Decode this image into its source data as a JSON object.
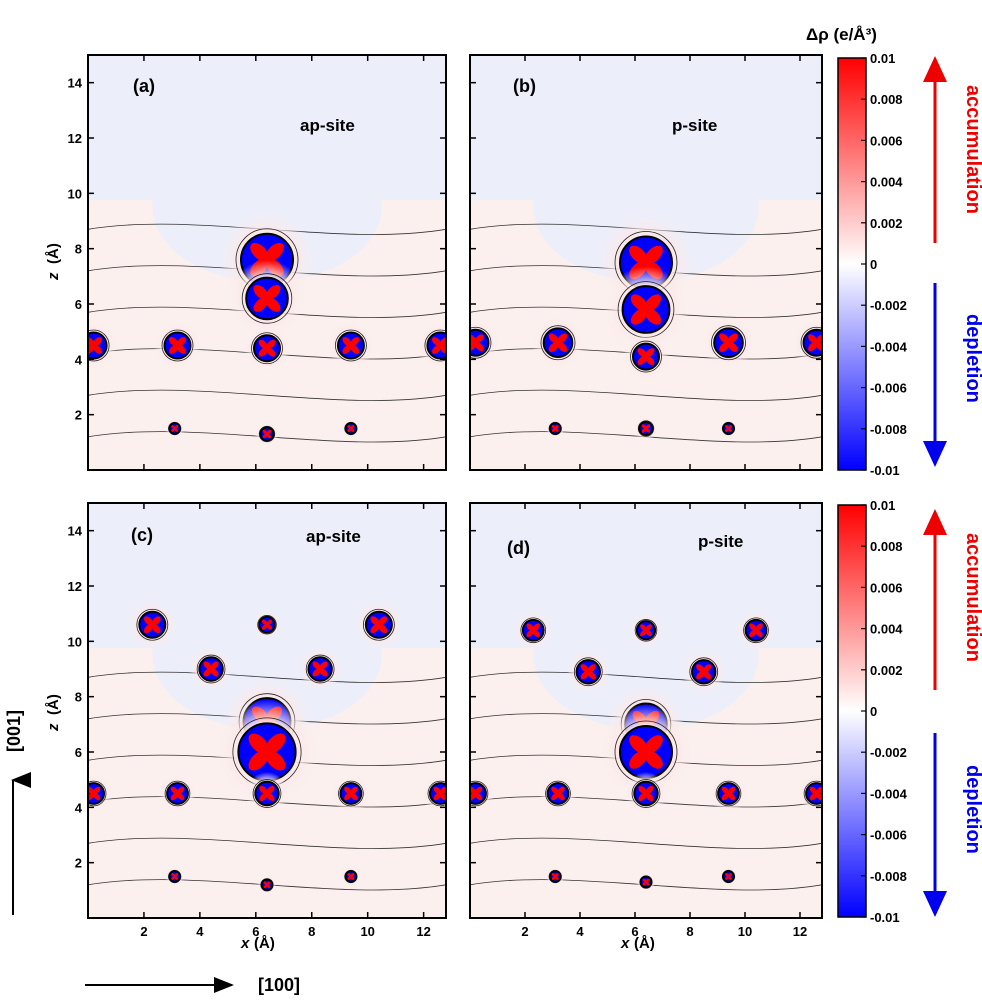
{
  "chart_data": {
    "type": "heatmap",
    "colorbar": {
      "title": "Δρ (e/Å³)",
      "min": -0.01,
      "max": 0.01,
      "ticks": [
        "0.01",
        "0.008",
        "0.006",
        "0.004",
        "0.002",
        "0",
        "-0.002",
        "-0.004",
        "-0.006",
        "-0.008",
        "-0.01"
      ],
      "colors": {
        "positive": "#ff0000",
        "zero": "#ffffff",
        "negative": "#0000ff"
      },
      "accumulation_label": "accumulation",
      "depletion_label": "depletion"
    },
    "xlim": [
      0,
      12.8
    ],
    "ylim": [
      0,
      15
    ],
    "x_ticks": [
      "2",
      "4",
      "6",
      "8",
      "10",
      "12"
    ],
    "y_ticks": [
      "2",
      "4",
      "6",
      "8",
      "10",
      "12",
      "14"
    ],
    "xlabel": "x",
    "ylabel": "z",
    "unit": "(Å)",
    "direction_x": "[100]",
    "direction_z": "[001]",
    "panels": [
      {
        "id": "(a)",
        "site": "ap-site",
        "lobes": [
          {
            "x": 0.2,
            "z": 4.5,
            "s": 1
          },
          {
            "x": 3.2,
            "z": 4.5,
            "s": 1
          },
          {
            "x": 9.4,
            "z": 4.5,
            "s": 1
          },
          {
            "x": 12.6,
            "z": 4.5,
            "s": 1
          },
          {
            "x": 6.4,
            "z": 7.6,
            "s": 2
          },
          {
            "x": 6.4,
            "z": 6.2,
            "s": 1.6
          },
          {
            "x": 6.4,
            "z": 4.4,
            "s": 1
          },
          {
            "x": 6.4,
            "z": 1.3,
            "s": 0.5
          },
          {
            "x": 3.1,
            "z": 1.5,
            "s": 0.4
          },
          {
            "x": 9.4,
            "z": 1.5,
            "s": 0.4
          }
        ]
      },
      {
        "id": "(b)",
        "site": "p-site",
        "lobes": [
          {
            "x": 0.2,
            "z": 4.6,
            "s": 1
          },
          {
            "x": 3.2,
            "z": 4.6,
            "s": 1.1
          },
          {
            "x": 9.4,
            "z": 4.6,
            "s": 1.1
          },
          {
            "x": 12.6,
            "z": 4.6,
            "s": 1
          },
          {
            "x": 6.4,
            "z": 7.5,
            "s": 2
          },
          {
            "x": 6.4,
            "z": 5.8,
            "s": 1.8
          },
          {
            "x": 6.4,
            "z": 4.1,
            "s": 1
          },
          {
            "x": 6.4,
            "z": 1.5,
            "s": 0.5
          },
          {
            "x": 3.1,
            "z": 1.5,
            "s": 0.4
          },
          {
            "x": 9.4,
            "z": 1.5,
            "s": 0.4
          }
        ]
      },
      {
        "id": "(c)",
        "site": "ap-site",
        "lobes": [
          {
            "x": 2.3,
            "z": 10.6,
            "s": 1
          },
          {
            "x": 10.4,
            "z": 10.6,
            "s": 1
          },
          {
            "x": 6.4,
            "z": 10.6,
            "s": 0.6
          },
          {
            "x": 4.4,
            "z": 9.0,
            "s": 0.9
          },
          {
            "x": 8.3,
            "z": 9.0,
            "s": 0.9
          },
          {
            "x": 6.4,
            "z": 7.1,
            "s": 1.8
          },
          {
            "x": 6.4,
            "z": 6.0,
            "s": 2.2
          },
          {
            "x": 0.2,
            "z": 4.5,
            "s": 0.8
          },
          {
            "x": 3.2,
            "z": 4.5,
            "s": 0.8
          },
          {
            "x": 6.4,
            "z": 4.5,
            "s": 0.9
          },
          {
            "x": 9.4,
            "z": 4.5,
            "s": 0.8
          },
          {
            "x": 12.6,
            "z": 4.5,
            "s": 0.8
          },
          {
            "x": 3.1,
            "z": 1.5,
            "s": 0.4
          },
          {
            "x": 6.4,
            "z": 1.2,
            "s": 0.4
          },
          {
            "x": 9.4,
            "z": 1.5,
            "s": 0.4
          }
        ]
      },
      {
        "id": "(d)",
        "site": "p-site",
        "lobes": [
          {
            "x": 2.3,
            "z": 10.4,
            "s": 0.8
          },
          {
            "x": 10.4,
            "z": 10.4,
            "s": 0.8
          },
          {
            "x": 6.4,
            "z": 10.4,
            "s": 0.7
          },
          {
            "x": 4.3,
            "z": 8.9,
            "s": 0.9
          },
          {
            "x": 8.5,
            "z": 8.9,
            "s": 0.9
          },
          {
            "x": 6.4,
            "z": 7.0,
            "s": 1.6
          },
          {
            "x": 6.4,
            "z": 6.0,
            "s": 2.0
          },
          {
            "x": 0.2,
            "z": 4.5,
            "s": 0.8
          },
          {
            "x": 3.2,
            "z": 4.5,
            "s": 0.8
          },
          {
            "x": 6.4,
            "z": 4.5,
            "s": 0.9
          },
          {
            "x": 9.4,
            "z": 4.5,
            "s": 0.8
          },
          {
            "x": 12.6,
            "z": 4.5,
            "s": 0.8
          },
          {
            "x": 3.1,
            "z": 1.5,
            "s": 0.4
          },
          {
            "x": 6.4,
            "z": 1.3,
            "s": 0.4
          },
          {
            "x": 9.4,
            "z": 1.5,
            "s": 0.4
          }
        ]
      }
    ]
  }
}
